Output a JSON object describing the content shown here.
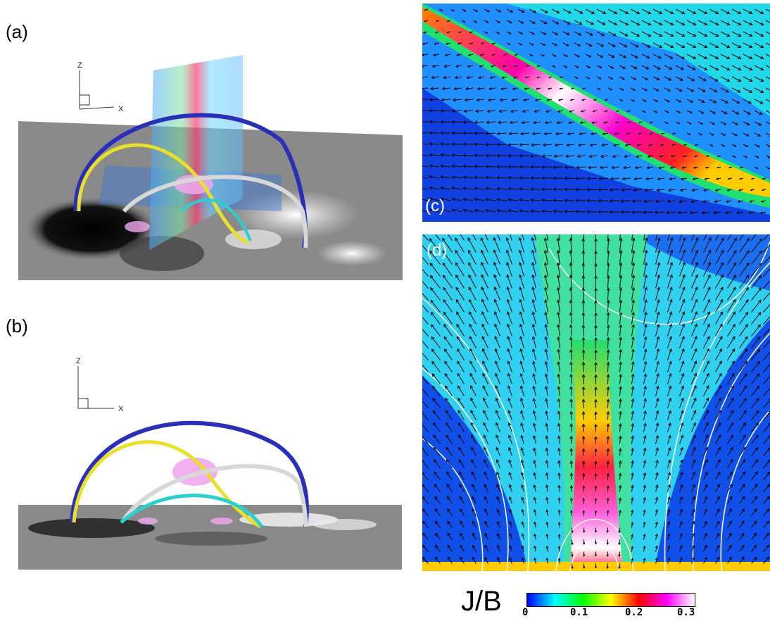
{
  "panels": {
    "a": {
      "label": "(a)"
    },
    "b": {
      "label": "(b)"
    },
    "c": {
      "label": "(c)"
    },
    "d": {
      "label": "(d)"
    }
  },
  "axes": {
    "z": "Z",
    "x": "X"
  },
  "colorbar": {
    "title": "J/B",
    "ticks": [
      "0",
      "0.1",
      "0.2",
      "0.3"
    ],
    "colors": [
      "#0000ff",
      "#00ffff",
      "#00ff00",
      "#ffff00",
      "#ff0000",
      "#ff00ff",
      "#ffffff"
    ]
  },
  "colors": {
    "loop_blue": "#2a2fb8",
    "loop_yellow": "#e8e02a",
    "loop_white": "#d8d8d8",
    "loop_cyan": "#2ad0d0",
    "isosurface": "#f0a8ee"
  }
}
